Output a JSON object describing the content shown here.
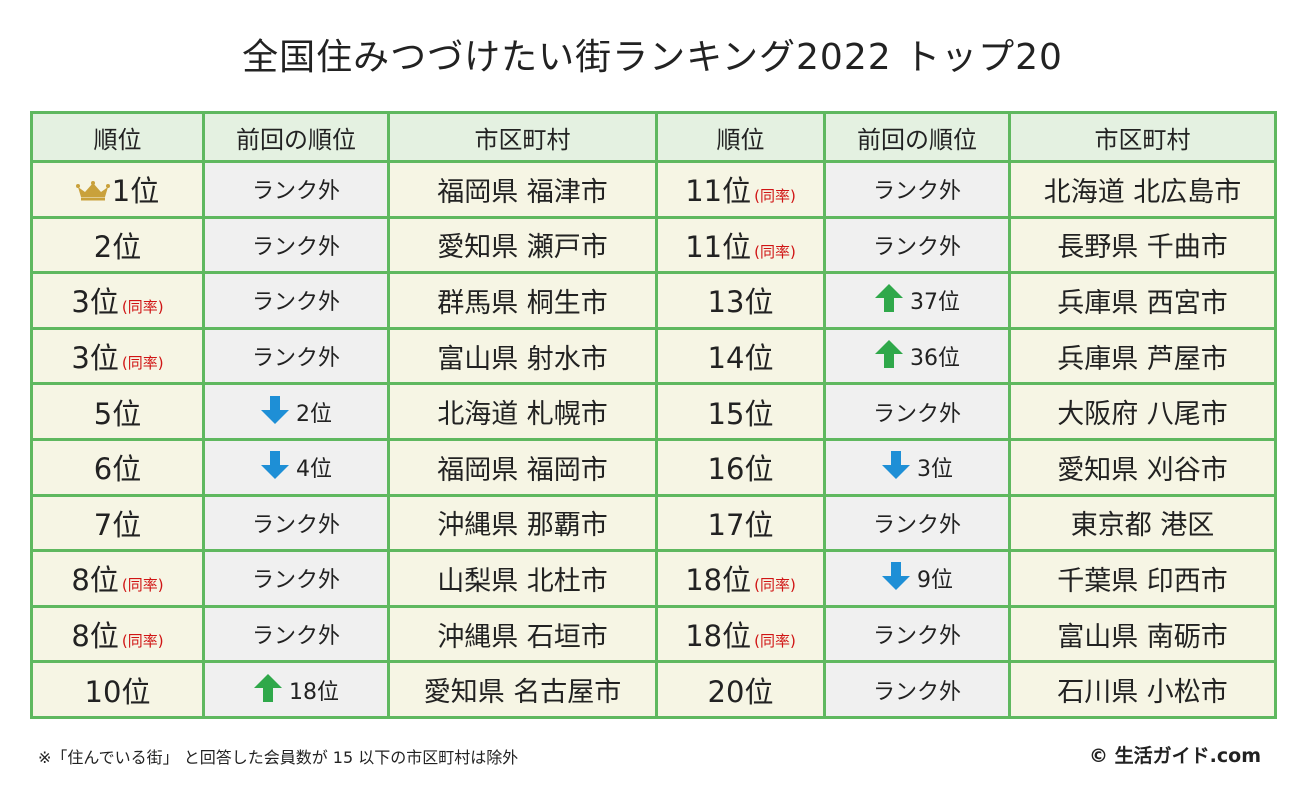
{
  "title": "全国住みつづけたい街ランキング2022 トップ20",
  "headers": [
    "順位",
    "前回の順位",
    "市区町村",
    "順位",
    "前回の順位",
    "市区町村"
  ],
  "colors": {
    "border": "#5fb85f",
    "header_bg": "#e4f1e1",
    "up_arrow": "#2fa84a",
    "down_arrow": "#1e8fd6",
    "tie_text": "#d01515",
    "crown": "#c9a13b"
  },
  "rows": [
    {
      "left": {
        "rank": "1位",
        "crown": true,
        "prev": "ランク外",
        "city": "福岡県 福津市"
      },
      "right": {
        "rank": "11位",
        "tie": "(同率)",
        "prev": "ランク外",
        "city": "北海道 北広島市"
      }
    },
    {
      "left": {
        "rank": "2位",
        "prev": "ランク外",
        "city": "愛知県 瀬戸市"
      },
      "right": {
        "rank": "11位",
        "tie": "(同率)",
        "prev": "ランク外",
        "city": "長野県 千曲市"
      }
    },
    {
      "left": {
        "rank": "3位",
        "tie": "(同率)",
        "prev": "ランク外",
        "city": "群馬県 桐生市"
      },
      "right": {
        "rank": "13位",
        "prev": "37位",
        "arrow": "up",
        "city": "兵庫県 西宮市"
      }
    },
    {
      "left": {
        "rank": "3位",
        "tie": "(同率)",
        "prev": "ランク外",
        "city": "富山県 射水市"
      },
      "right": {
        "rank": "14位",
        "prev": "36位",
        "arrow": "up",
        "city": "兵庫県 芦屋市"
      }
    },
    {
      "left": {
        "rank": "5位",
        "prev": "2位",
        "arrow": "down",
        "city": "北海道 札幌市"
      },
      "right": {
        "rank": "15位",
        "prev": "ランク外",
        "city": "大阪府 八尾市"
      }
    },
    {
      "left": {
        "rank": "6位",
        "prev": "4位",
        "arrow": "down",
        "city": "福岡県 福岡市"
      },
      "right": {
        "rank": "16位",
        "prev": "3位",
        "arrow": "down",
        "city": "愛知県 刈谷市"
      }
    },
    {
      "left": {
        "rank": "7位",
        "prev": "ランク外",
        "city": "沖縄県 那覇市"
      },
      "right": {
        "rank": "17位",
        "prev": "ランク外",
        "city": "東京都 港区"
      }
    },
    {
      "left": {
        "rank": "8位",
        "tie": "(同率)",
        "prev": "ランク外",
        "city": "山梨県 北杜市"
      },
      "right": {
        "rank": "18位",
        "tie": "(同率)",
        "prev": "9位",
        "arrow": "down",
        "city": "千葉県 印西市"
      }
    },
    {
      "left": {
        "rank": "8位",
        "tie": "(同率)",
        "prev": "ランク外",
        "city": "沖縄県 石垣市"
      },
      "right": {
        "rank": "18位",
        "tie": "(同率)",
        "prev": "ランク外",
        "city": "富山県 南砺市"
      }
    },
    {
      "left": {
        "rank": "10位",
        "prev": "18位",
        "arrow": "up",
        "city": "愛知県 名古屋市"
      },
      "right": {
        "rank": "20位",
        "prev": "ランク外",
        "city": "石川県 小松市"
      }
    }
  ],
  "footnote": "※「住んでいる街」 と回答した会員数が 15 以下の市区町村は除外",
  "copyright": "© 生活ガイド.com"
}
